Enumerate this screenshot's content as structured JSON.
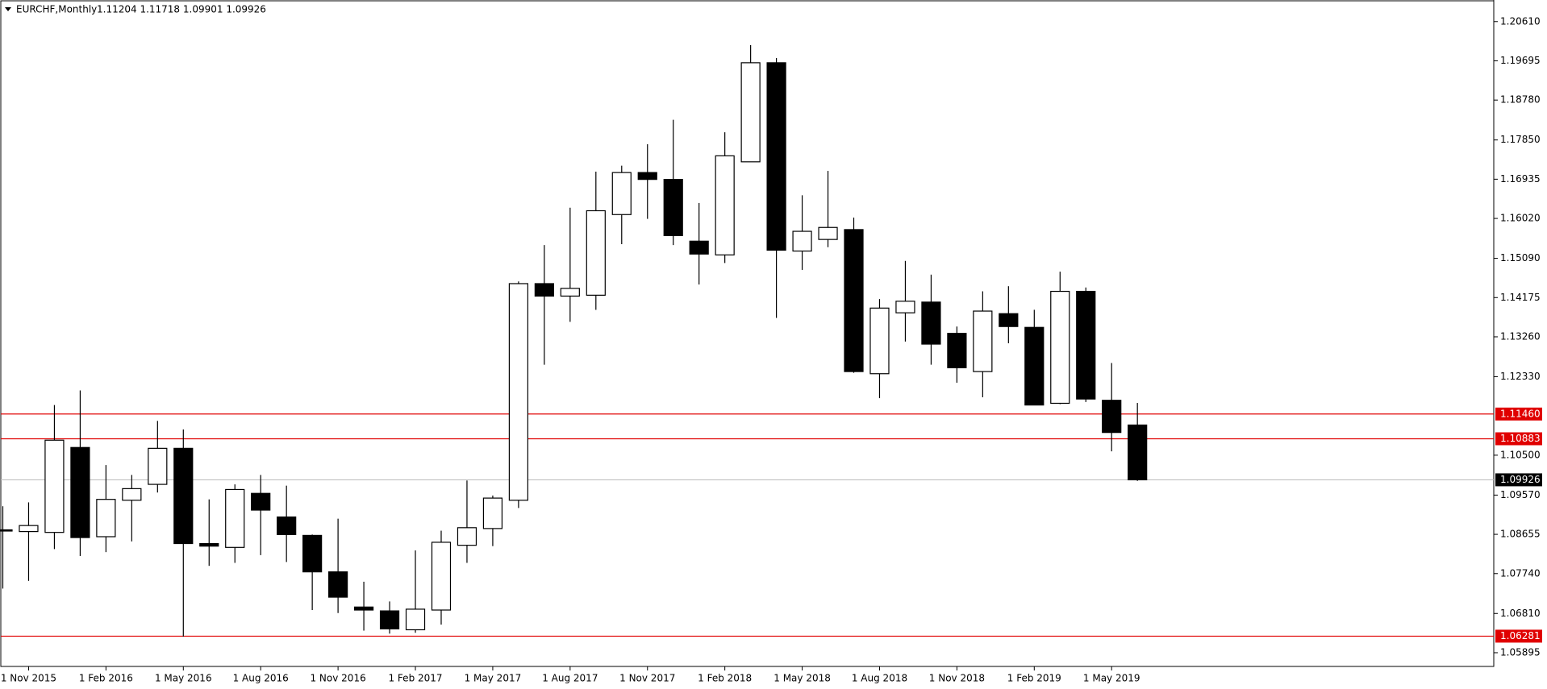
{
  "chart_data": {
    "type": "candlestick",
    "title": "EURCHF,Monthly",
    "ohlc_label": "1.11204 1.11718 1.09901 1.09926",
    "categories": [
      null,
      "1 Nov 2015",
      null,
      null,
      "1 Feb 2016",
      null,
      null,
      "1 May 2016",
      null,
      null,
      "1 Aug 2016",
      null,
      null,
      "1 Nov 2016",
      null,
      null,
      "1 Feb 2017",
      null,
      null,
      "1 May 2017",
      null,
      null,
      "1 Aug 2017",
      null,
      null,
      "1 Nov 2017",
      null,
      null,
      "1 Feb 2018",
      null,
      null,
      "1 May 2018",
      null,
      null,
      "1 Aug 2018",
      null,
      null,
      "1 Nov 2018",
      null,
      null,
      "1 Feb 2019",
      null,
      null,
      "1 May 2019",
      null
    ],
    "open": [
      1.0876,
      1.0872,
      1.087,
      1.1068,
      1.086,
      1.0945,
      1.0982,
      1.1066,
      1.0844,
      1.0835,
      1.0961,
      1.0906,
      1.0863,
      1.0778,
      1.0696,
      1.0687,
      1.0643,
      1.0689,
      1.084,
      1.0879,
      1.0945,
      1.145,
      1.1421,
      1.1423,
      1.1611,
      1.1709,
      1.1693,
      1.1549,
      1.1517,
      1.1734,
      1.1965,
      1.1526,
      1.1553,
      1.1576,
      1.124,
      1.1382,
      1.1407,
      1.1334,
      1.1245,
      1.138,
      1.1348,
      1.1171,
      1.1432,
      1.1178,
      1.11204
    ],
    "high": [
      1.0931,
      1.094,
      1.1167,
      1.1201,
      1.1027,
      1.1004,
      1.113,
      1.111,
      1.0947,
      1.0982,
      1.1004,
      1.0979,
      1.0865,
      1.0902,
      1.0755,
      1.0709,
      1.0828,
      1.0874,
      1.0991,
      1.0956,
      1.1455,
      1.154,
      1.1627,
      1.1711,
      1.1725,
      1.1775,
      1.1832,
      1.1638,
      1.1803,
      1.2006,
      1.1976,
      1.1656,
      1.1713,
      1.1604,
      1.1414,
      1.1503,
      1.1471,
      1.135,
      1.1432,
      1.1444,
      1.1389,
      1.1478,
      1.1441,
      1.1265,
      1.11718
    ],
    "low": [
      1.0739,
      1.0757,
      1.0831,
      1.0815,
      1.0824,
      1.0849,
      1.0963,
      1.0627,
      1.0792,
      1.0799,
      1.0817,
      1.0801,
      1.0689,
      1.0682,
      1.0641,
      1.0634,
      1.0636,
      1.0655,
      1.0799,
      1.0838,
      1.0927,
      1.1261,
      1.1361,
      1.1389,
      1.1542,
      1.1601,
      1.154,
      1.1448,
      1.1498,
      1.1734,
      1.137,
      1.1482,
      1.1535,
      1.1242,
      1.1183,
      1.1315,
      1.1261,
      1.1219,
      1.1185,
      1.1311,
      1.1167,
      1.1169,
      1.1174,
      1.1059,
      1.09901
    ],
    "close": [
      1.0874,
      1.0886,
      1.1085,
      1.0858,
      1.0947,
      1.0972,
      1.1066,
      1.0844,
      1.0838,
      1.097,
      1.0922,
      1.0865,
      1.0778,
      1.0719,
      1.0689,
      1.0645,
      1.0691,
      1.0847,
      1.0881,
      1.095,
      1.145,
      1.1421,
      1.1439,
      1.162,
      1.1709,
      1.1693,
      1.1562,
      1.1519,
      1.1748,
      1.1965,
      1.1528,
      1.1572,
      1.1581,
      1.1245,
      1.1393,
      1.1409,
      1.1309,
      1.1254,
      1.1386,
      1.135,
      1.1167,
      1.1432,
      1.1181,
      1.1103,
      1.09926
    ],
    "up_color": "#ffffff",
    "down_color": "#000000",
    "ylim": [
      1.05575,
      1.21113
    ],
    "yticks": [
      {
        "value": 1.2061,
        "label": "1.20610"
      },
      {
        "value": 1.19695,
        "label": "1.19695"
      },
      {
        "value": 1.1878,
        "label": "1.18780"
      },
      {
        "value": 1.1785,
        "label": "1.17850"
      },
      {
        "value": 1.16935,
        "label": "1.16935"
      },
      {
        "value": 1.1602,
        "label": "1.16020"
      },
      {
        "value": 1.1509,
        "label": "1.15090"
      },
      {
        "value": 1.14175,
        "label": "1.14175"
      },
      {
        "value": 1.1326,
        "label": "1.13260"
      },
      {
        "value": 1.1233,
        "label": "1.12330"
      },
      {
        "value": 1.105,
        "label": "1.10500"
      },
      {
        "value": 1.0957,
        "label": "1.09570"
      },
      {
        "value": 1.08655,
        "label": "1.08655"
      },
      {
        "value": 1.0774,
        "label": "1.07740"
      },
      {
        "value": 1.0681,
        "label": "1.06810"
      },
      {
        "value": 1.05895,
        "label": "1.05895"
      }
    ],
    "levels": [
      {
        "value": 1.1146,
        "label": "1.11460",
        "color": "#e00000"
      },
      {
        "value": 1.10883,
        "label": "1.10883",
        "color": "#e00000"
      },
      {
        "value": 1.06281,
        "label": "1.06281",
        "color": "#e00000"
      },
      {
        "value": 1.09926,
        "label": "1.09926",
        "color": "#000000"
      }
    ]
  }
}
